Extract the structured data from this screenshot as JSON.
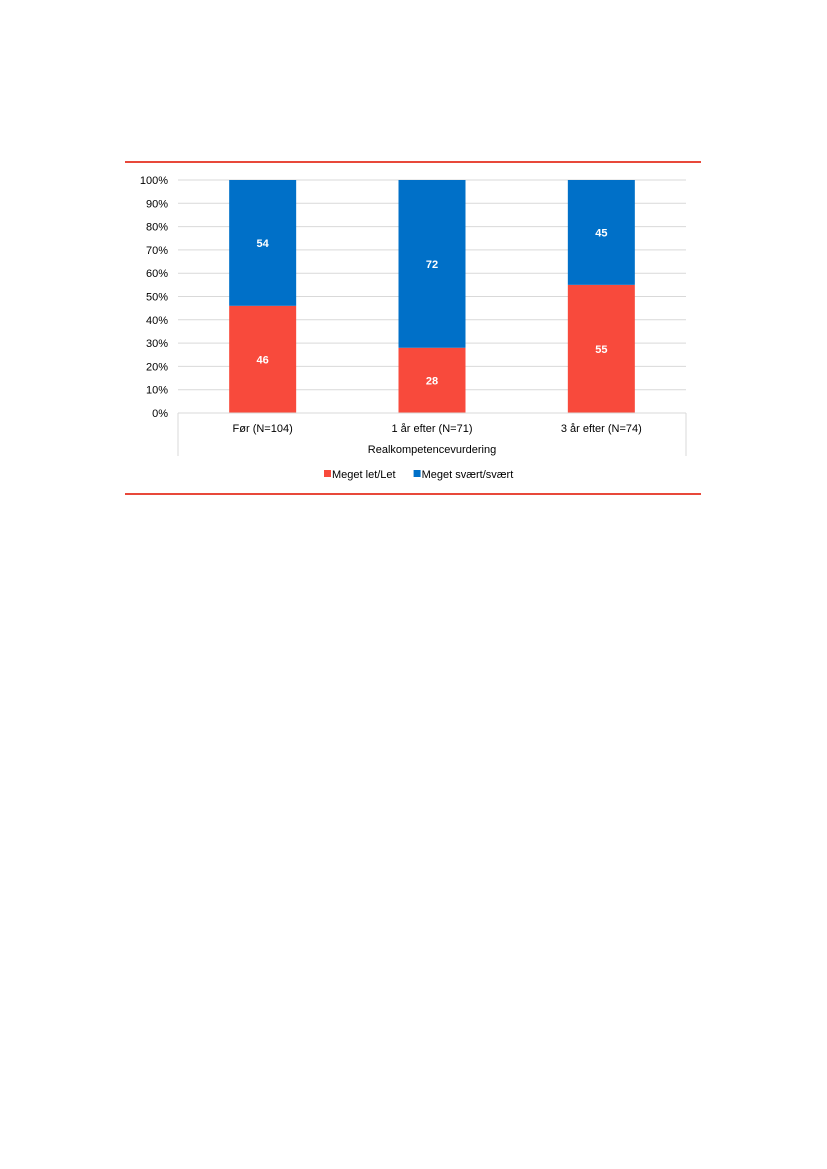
{
  "chart_data": {
    "type": "bar",
    "stacked": true,
    "categories": [
      "Før (N=104)",
      "1 år efter (N=71)",
      "3 år efter (N=74)"
    ],
    "xlabel": "Realkompetencevurdering",
    "ylabel": "",
    "ylim": [
      0,
      100
    ],
    "yticks": [
      "0%",
      "10%",
      "20%",
      "30%",
      "40%",
      "50%",
      "60%",
      "70%",
      "80%",
      "90%",
      "100%"
    ],
    "grid": true,
    "legend_position": "bottom",
    "series": [
      {
        "name": "Meget let/Let",
        "color": "#f84a3c",
        "values": [
          46,
          28,
          55
        ]
      },
      {
        "name": "Meget svært/svært",
        "color": "#0070c8",
        "values": [
          54,
          72,
          45
        ]
      }
    ]
  },
  "colors": {
    "rule": "#e8483a",
    "grid": "#d9d9d9"
  }
}
